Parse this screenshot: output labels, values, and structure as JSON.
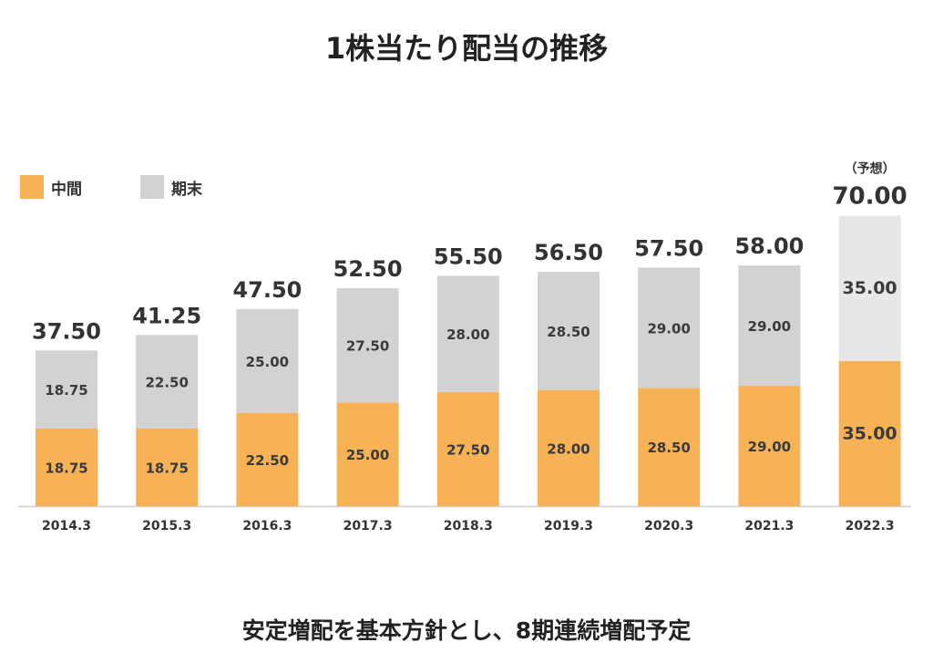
{
  "chart_data": {
    "type": "bar",
    "stacked": true,
    "title": "1株当たり配当の推移",
    "categories": [
      "2014.3",
      "2015.3",
      "2016.3",
      "2017.3",
      "2018.3",
      "2019.3",
      "2020.3",
      "2021.3",
      "2022.3"
    ],
    "series": [
      {
        "name": "中間",
        "color": "#F7B256",
        "values": [
          18.75,
          18.75,
          22.5,
          25.0,
          27.5,
          28.0,
          28.5,
          29.0,
          35.0
        ]
      },
      {
        "name": "期末",
        "color": "#D3D1D3",
        "values": [
          18.75,
          22.5,
          25.0,
          27.5,
          28.0,
          28.5,
          29.0,
          29.0,
          35.0
        ]
      }
    ],
    "totals": [
      37.5,
      41.25,
      47.5,
      52.5,
      55.5,
      56.5,
      57.5,
      58.0,
      70.0
    ],
    "forecast_index": 8,
    "forecast_label": "（予想）",
    "forecast_series_colors": [
      "#F7B256",
      "#E8E7E8"
    ],
    "legend_position": "top-left",
    "grid": false
  },
  "footnote": "安定増配を基本方針とし、8期連続増配予定"
}
